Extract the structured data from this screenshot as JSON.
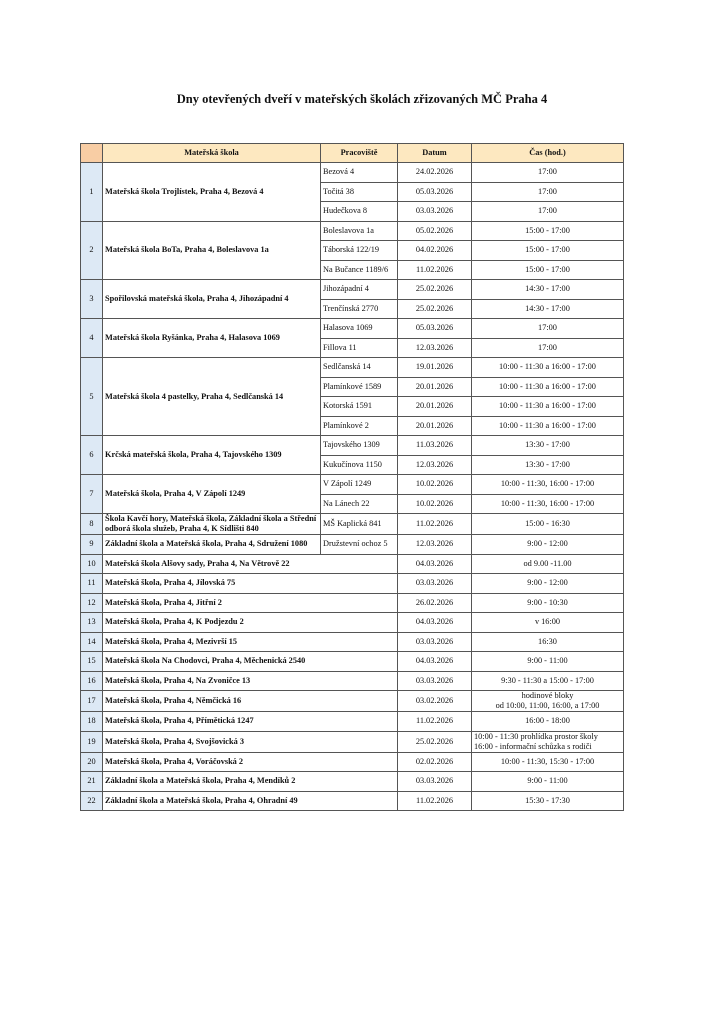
{
  "title": "Dny otevřených dveří v mateřských školách zřizovaných MČ Praha 4",
  "table": {
    "headers": {
      "num": "",
      "school": "Mateřská škola",
      "place": "Pracoviště",
      "date": "Datum",
      "time": "Čas (hod.)"
    },
    "colors": {
      "header": "#fde8c0",
      "number_column": "#dde9f5"
    },
    "rows": [
      {
        "num": "1",
        "school": "Mateřská škola Trojlístek, Praha 4, Bezová 4",
        "sites": [
          {
            "place": "Bezová 4",
            "date": "24.02.2026",
            "time": "17:00"
          },
          {
            "place": "Točitá 38",
            "date": "05.03.2026",
            "time": "17:00"
          },
          {
            "place": "Hudečkova 8",
            "date": "03.03.2026",
            "time": "17:00"
          }
        ]
      },
      {
        "num": "2",
        "school": "Mateřská škola BoTa, Praha 4, Boleslavova 1a",
        "sites": [
          {
            "place": "Boleslavova 1a",
            "date": "05.02.2026",
            "time": "15:00 - 17:00"
          },
          {
            "place": "Táborská 122/19",
            "date": "04.02.2026",
            "time": "15:00 - 17:00"
          },
          {
            "place": "Na Bučance 1189/6",
            "date": "11.02.2026",
            "time": "15:00 - 17:00"
          }
        ]
      },
      {
        "num": "3",
        "school": "Spořilovská mateřská škola, Praha 4, Jihozápadní 4",
        "sites": [
          {
            "place": "Jihozápadní 4",
            "date": "25.02.2026",
            "time": "14:30 - 17:00"
          },
          {
            "place": "Trenčínská 2770",
            "date": "25.02.2026",
            "time": "14:30 - 17:00"
          }
        ]
      },
      {
        "num": "4",
        "school": "Mateřská škola Ryšánka, Praha 4, Halasova 1069",
        "sites": [
          {
            "place": "Halasova 1069",
            "date": "05.03.2026",
            "time": "17:00"
          },
          {
            "place": "Fillova 11",
            "date": "12.03.2026",
            "time": "17:00"
          }
        ]
      },
      {
        "num": "5",
        "school": "Mateřská škola 4 pastelky, Praha 4, Sedlčanská 14",
        "sites": [
          {
            "place": "Sedlčanská 14",
            "date": "19.01.2026",
            "time": "10:00 - 11:30  a  16:00 - 17:00"
          },
          {
            "place": "Plamínkové 1589",
            "date": "20.01.2026",
            "time": "10:00 - 11:30  a  16:00 - 17:00"
          },
          {
            "place": "Kotorská 1591",
            "date": "20.01.2026",
            "time": "10:00 - 11:30  a  16:00 - 17:00"
          },
          {
            "place": "Plamínkové 2",
            "date": "20.01.2026",
            "time": "10:00 - 11:30  a  16:00 - 17:00"
          }
        ]
      },
      {
        "num": "6",
        "school": "Krčská mateřská škola, Praha 4, Tajovského 1309",
        "sites": [
          {
            "place": "Tajovského 1309",
            "date": "11.03.2026",
            "time": "13:30 - 17:00"
          },
          {
            "place": "Kukučínova 1150",
            "date": "12.03.2026",
            "time": "13:30 - 17:00"
          }
        ]
      },
      {
        "num": "7",
        "school": "Mateřská škola, Praha 4, V Zápolí 1249",
        "sites": [
          {
            "place": "V Zápolí 1249",
            "date": "10.02.2026",
            "time": "10:00 - 11:30, 16:00 - 17:00"
          },
          {
            "place": " Na Lánech 22",
            "date": "10.02.2026",
            "time": "10:00 - 11:30, 16:00 - 17:00"
          }
        ]
      },
      {
        "num": "8",
        "school": "Škola Kavčí hory, Mateřská škola, Základní škola a Střední odborá škola služeb, Praha 4, K Sídlišti 840",
        "sites": [
          {
            "place": "MŠ Kaplická 841",
            "date": "11.02.2026",
            "time": "15:00 - 16:30"
          }
        ]
      },
      {
        "num": "9",
        "school": "Základní škola a Mateřská škola, Praha 4, Sdružení 1080",
        "sites": [
          {
            "place": "Družstevní ochoz 5",
            "date": "12.03.2026",
            "time": "9:00 - 12:00"
          }
        ]
      },
      {
        "num": "10",
        "school": "Mateřská škola Alšovy sady, Praha 4, Na Větrově 22",
        "date": "04.03.2026",
        "time": "od 9.00 -11.00"
      },
      {
        "num": "11",
        "school": "Mateřská škola, Praha 4, Jílovská 75",
        "date": "03.03.2026",
        "time": "9:00 - 12:00"
      },
      {
        "num": "12",
        "school": "Mateřská škola, Praha 4, Jitřní 2",
        "date": "26.02.2026",
        "time": "9:00 - 10:30"
      },
      {
        "num": "13",
        "school": "Mateřská škola, Praha 4, K Podjezdu 2",
        "date": "04.03.2026",
        "time": "v 16:00"
      },
      {
        "num": "14",
        "school": "Mateřská škola, Praha 4, Mezivrší 15",
        "date": "03.03.2026",
        "time": "16:30"
      },
      {
        "num": "15",
        "school": "Mateřská škola Na Chodovci, Praha 4, Měchenická 2540",
        "date": "04.03.2026",
        "time": "9:00 - 11:00"
      },
      {
        "num": "16",
        "school": "Mateřská škola, Praha 4, Na Zvoničce 13",
        "date": "03.03.2026",
        "time": "9:30 - 11:30 a 15:00 - 17:00"
      },
      {
        "num": "17",
        "school": "Mateřská škola, Praha 4, Němčická 16",
        "date": "03.02.2026",
        "time": "hodinové bloky\nod 10:00, 11:00, 16:00, a 17:00"
      },
      {
        "num": "18",
        "school": "Mateřská škola, Praha 4, Přímětická 1247",
        "date": "11.02.2026",
        "time": "16:00 - 18:00"
      },
      {
        "num": "19",
        "school": "Mateřská škola, Praha 4, Svojšovická 3",
        "date": "25.02.2026",
        "time": "10:00 - 11:30 prohlídka prostor školy\n16:00 - informační schůzka s rodiči"
      },
      {
        "num": "20",
        "school": "Mateřská škola, Praha 4, Voráčovská 2",
        "date": "02.02.2026",
        "time": "10:00 - 11:30, 15:30 - 17:00"
      },
      {
        "num": "21",
        "school": "Základní škola a Mateřská škola, Praha 4, Mendíků 2",
        "date": "03.03.2026",
        "time": "9:00 - 11:00"
      },
      {
        "num": "22",
        "school": "Základní škola a Mateřská škola, Praha 4, Ohradní 49",
        "date": "11.02.2026",
        "time": "15:30 - 17:30"
      }
    ]
  }
}
